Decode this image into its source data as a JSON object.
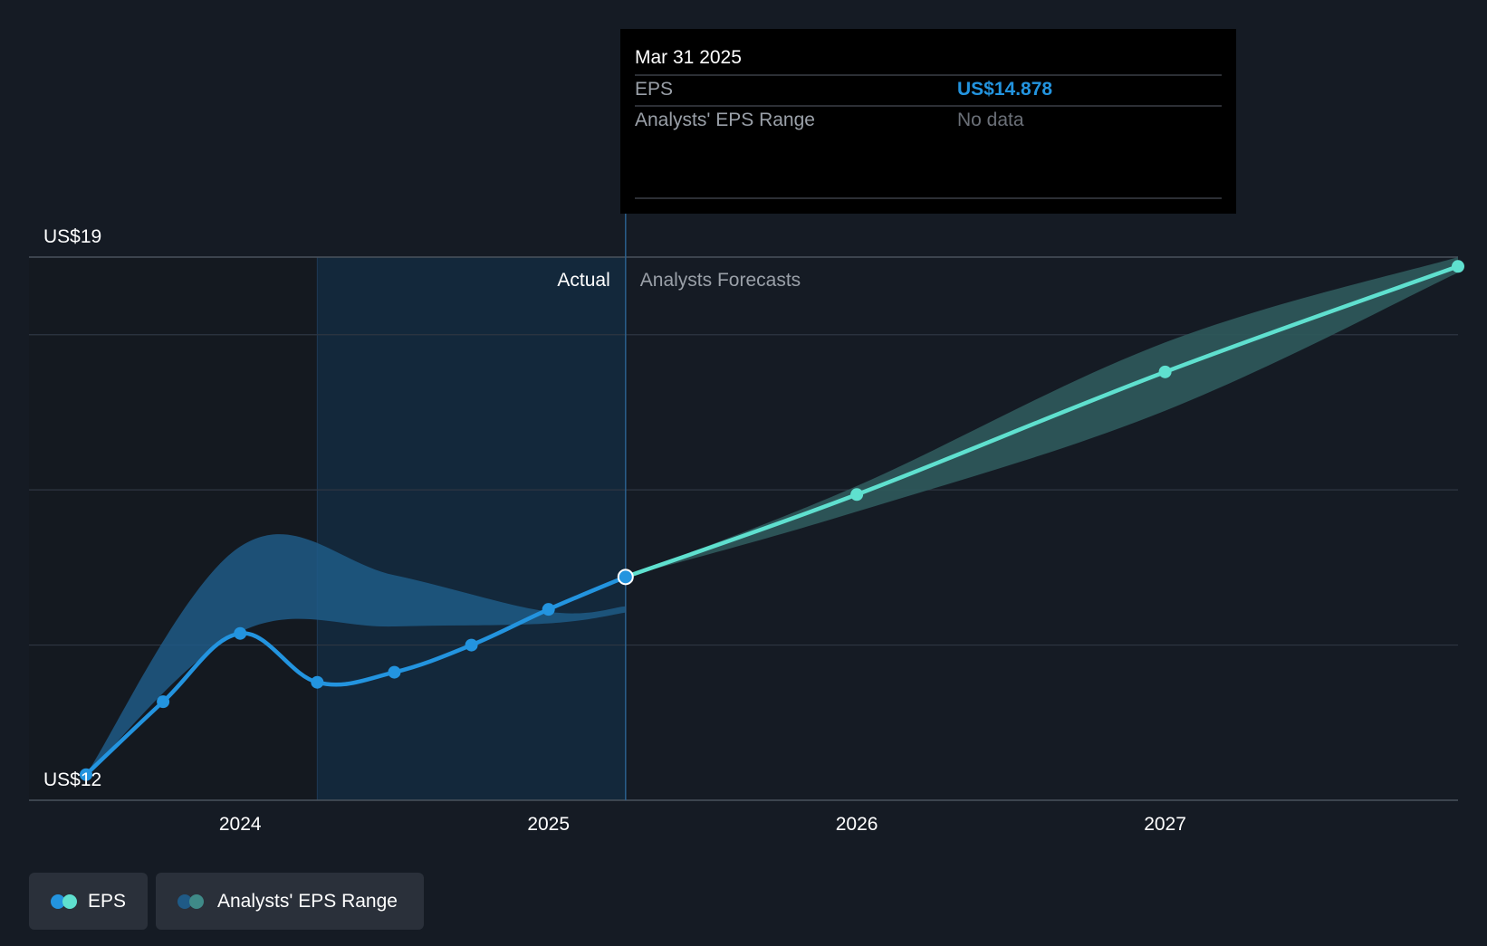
{
  "colors": {
    "background": "#151b24",
    "actual_line": "#2394df",
    "actual_band": "#1f5a86",
    "forecast_line": "#5fe0cf",
    "forecast_band": "#2f5a5c",
    "grid": "#2e3642",
    "tooltip_bg": "#000000",
    "tooltip_value": "#2394df"
  },
  "tooltip": {
    "date": "Mar 31 2025",
    "rows": [
      {
        "label": "EPS",
        "value": "US$14.878"
      },
      {
        "label": "Analysts' EPS Range",
        "value": "No data"
      }
    ]
  },
  "section_labels": {
    "actual": "Actual",
    "forecast": "Analysts Forecasts"
  },
  "legend": [
    {
      "label": "EPS",
      "icon": "eps-dots-icon"
    },
    {
      "label": "Analysts' EPS Range",
      "icon": "range-dots-icon"
    }
  ],
  "chart_data": {
    "type": "line",
    "title": "",
    "xlabel": "",
    "ylabel": "",
    "ylim": [
      12,
      19
    ],
    "y_tick_labels": [
      "US$19",
      "US$12"
    ],
    "gridlines": [
      18,
      16,
      14
    ],
    "x_range": [
      2023.5,
      2027.95
    ],
    "x_ticks": [
      {
        "value": 2024.0,
        "label": "2024"
      },
      {
        "value": 2025.0,
        "label": "2025"
      },
      {
        "value": 2026.0,
        "label": "2026"
      },
      {
        "value": 2027.0,
        "label": "2027"
      }
    ],
    "shaded_actual_start": 2024.25,
    "split_x": 2025.25,
    "series": [
      {
        "name": "EPS (Actual)",
        "points": [
          {
            "x": 2023.5,
            "y": 12.33
          },
          {
            "x": 2023.75,
            "y": 13.27
          },
          {
            "x": 2024.0,
            "y": 14.15
          },
          {
            "x": 2024.25,
            "y": 13.52
          },
          {
            "x": 2024.5,
            "y": 13.65
          },
          {
            "x": 2024.75,
            "y": 14.0
          },
          {
            "x": 2025.0,
            "y": 14.46
          },
          {
            "x": 2025.25,
            "y": 14.878
          }
        ]
      },
      {
        "name": "EPS (Analysts Forecasts)",
        "points": [
          {
            "x": 2025.25,
            "y": 14.878
          },
          {
            "x": 2026.0,
            "y": 15.94
          },
          {
            "x": 2027.0,
            "y": 17.52
          },
          {
            "x": 2027.95,
            "y": 18.88
          }
        ]
      }
    ],
    "range_bands": [
      {
        "name": "Analysts' EPS Range (Actual)",
        "upper": [
          {
            "x": 2023.5,
            "y": 12.33
          },
          {
            "x": 2024.0,
            "y": 15.27
          },
          {
            "x": 2024.5,
            "y": 14.9
          },
          {
            "x": 2025.0,
            "y": 14.43
          },
          {
            "x": 2025.25,
            "y": 14.5
          }
        ],
        "lower": [
          {
            "x": 2023.5,
            "y": 12.33
          },
          {
            "x": 2024.0,
            "y": 14.17
          },
          {
            "x": 2024.5,
            "y": 14.24
          },
          {
            "x": 2025.0,
            "y": 14.28
          },
          {
            "x": 2025.25,
            "y": 14.42
          }
        ]
      },
      {
        "name": "Analysts' EPS Range (Forecast)",
        "upper": [
          {
            "x": 2025.25,
            "y": 14.878
          },
          {
            "x": 2026.0,
            "y": 16.05
          },
          {
            "x": 2027.0,
            "y": 17.9
          },
          {
            "x": 2027.95,
            "y": 19.0
          }
        ],
        "lower": [
          {
            "x": 2025.25,
            "y": 14.878
          },
          {
            "x": 2026.0,
            "y": 15.72
          },
          {
            "x": 2027.0,
            "y": 17.02
          },
          {
            "x": 2027.95,
            "y": 18.8
          }
        ]
      }
    ]
  }
}
